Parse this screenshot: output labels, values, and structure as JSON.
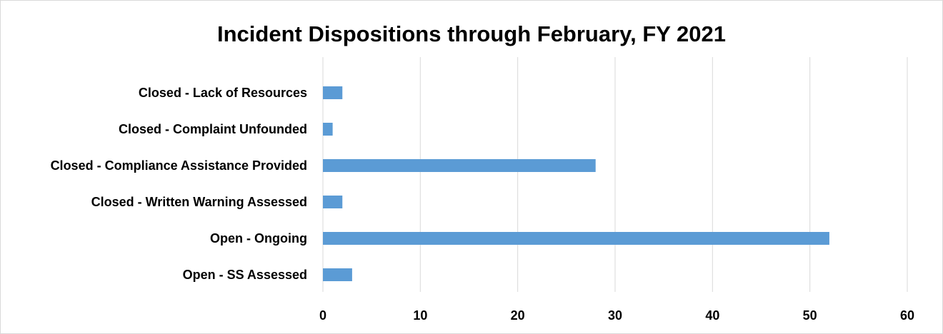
{
  "chart_data": {
    "type": "bar",
    "orientation": "horizontal",
    "title": "Incident Dispositions through February, FY 2021",
    "categories": [
      "Closed - Lack of Resources",
      "Closed - Complaint Unfounded",
      "Closed - Compliance Assistance Provided",
      "Closed - Written Warning Assessed",
      "Open - Ongoing",
      "Open - SS Assessed"
    ],
    "values": [
      2,
      1,
      28,
      2,
      52,
      3
    ],
    "xlim": [
      0,
      60
    ],
    "xticks": [
      "0",
      "10",
      "20",
      "30",
      "40",
      "50",
      "60"
    ],
    "xlabel": "",
    "ylabel": "",
    "grid": true,
    "legend": "none",
    "bar_color": "#5b9bd5",
    "grid_color": "#d9d9d9"
  }
}
